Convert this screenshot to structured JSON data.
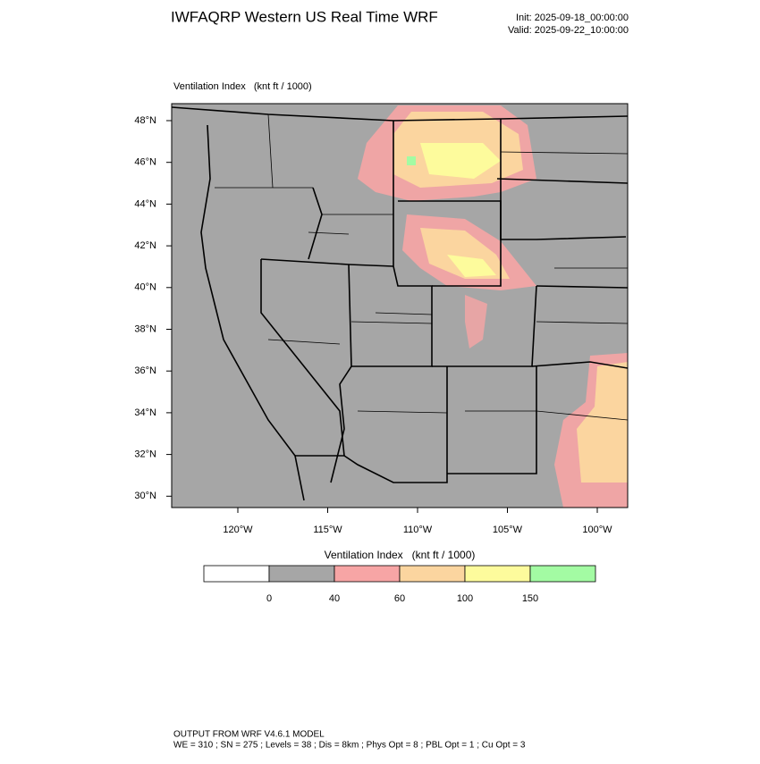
{
  "header": {
    "title": "IWFAQRP Western US Real Time WRF",
    "init": "Init: 2025-09-18_00:00:00",
    "valid": "Valid: 2025-09-22_10:00:00"
  },
  "map": {
    "label": "Ventilation Index   (knt ft / 1000)",
    "lat_labels": [
      "48°N",
      "46°N",
      "44°N",
      "42°N",
      "40°N",
      "38°N",
      "36°N",
      "34°N",
      "32°N",
      "30°N"
    ],
    "lon_labels": [
      "120°W",
      "115°W",
      "110°W",
      "105°W",
      "100°W"
    ]
  },
  "colorbar": {
    "title": "Ventilation Index   (knt ft / 1000)",
    "colors": [
      "#ffffff",
      "#a6a6a6",
      "#f7a5a5",
      "#fbd59f",
      "#fdfb9c",
      "#a3fba3"
    ],
    "labels": [
      "0",
      "40",
      "60",
      "100",
      "150"
    ]
  },
  "footer": {
    "model": "OUTPUT FROM WRF V4.6.1 MODEL",
    "details": "WE = 310 ; SN = 275 ; Levels = 38 ; Dis = 8km ; Phys Opt = 8 ; PBL Opt = 1 ; Cu Opt = 3"
  }
}
